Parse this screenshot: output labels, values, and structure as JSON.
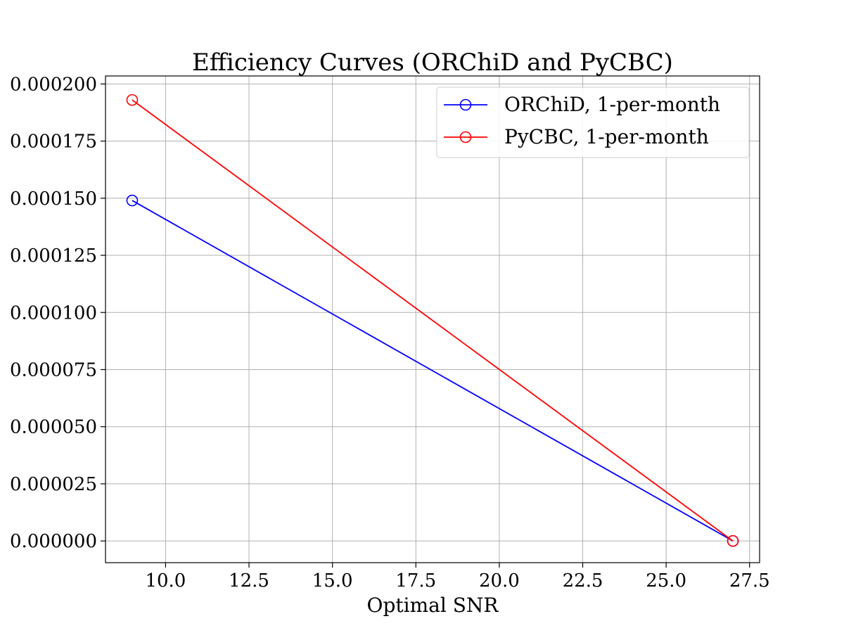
{
  "chart_data": {
    "type": "line",
    "title": "Efficiency Curves (ORChiD and PyCBC)",
    "xlabel": "Optimal SNR",
    "ylabel": "",
    "xlim": [
      8.2,
      27.8
    ],
    "ylim": [
      -9.5e-06,
      0.0002035
    ],
    "xticks": [
      10.0,
      12.5,
      15.0,
      17.5,
      20.0,
      22.5,
      25.0,
      27.5
    ],
    "xtick_labels": [
      "10.0",
      "12.5",
      "15.0",
      "17.5",
      "20.0",
      "22.5",
      "25.0",
      "27.5"
    ],
    "yticks": [
      0.0,
      2.5e-05,
      5e-05,
      7.5e-05,
      0.0001,
      0.000125,
      0.00015,
      0.000175,
      0.0002
    ],
    "ytick_labels": [
      "0.000000",
      "0.000025",
      "0.000050",
      "0.000075",
      "0.000100",
      "0.000125",
      "0.000150",
      "0.000175",
      "0.000200"
    ],
    "grid": true,
    "legend_position": "top-right",
    "series": [
      {
        "name": "ORChiD, 1-per-month",
        "color": "#0000ff",
        "marker": "open-circle",
        "x": [
          9.0,
          27.0
        ],
        "y": [
          0.000149,
          0.0
        ]
      },
      {
        "name": "PyCBC, 1-per-month",
        "color": "#ff0000",
        "marker": "open-circle",
        "x": [
          9.0,
          27.0
        ],
        "y": [
          0.000193,
          0.0
        ]
      }
    ]
  }
}
